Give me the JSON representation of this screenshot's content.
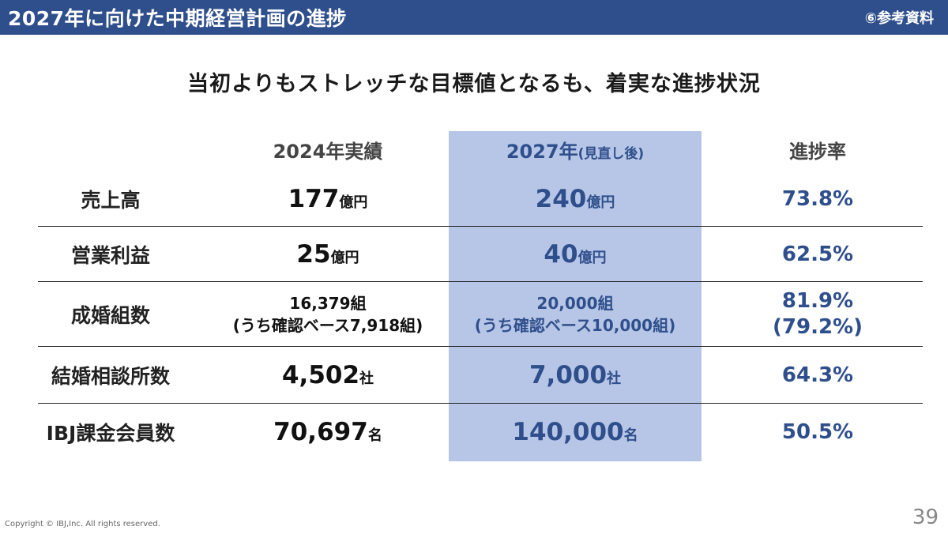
{
  "header": {
    "title": "2027年に向けた中期経営計画の進捗",
    "tag": "⑥参考資料"
  },
  "subtitle": "当初よりもストレッチな目標値となるも、着実な進捗状況",
  "columns": {
    "col_2024": "2024年実績",
    "col_2027": "2027年",
    "col_2027_note": "(見直し後)",
    "col_rate": "進捗率"
  },
  "rows": [
    {
      "label": "売上高",
      "v2024": "177",
      "u2024": "億円",
      "v2027": "240",
      "u2027": "億円",
      "rate": "73.8%"
    },
    {
      "label": "営業利益",
      "v2024": "25",
      "u2024": "億円",
      "v2027": "40",
      "u2027": "億円",
      "rate": "62.5%"
    },
    {
      "label": "成婚組数",
      "v2024_line1": "16,379組",
      "v2024_line2": "(うち確認ベース7,918組)",
      "v2027_line1": "20,000組",
      "v2027_line2": "(うち確認ベース10,000組)",
      "rate": "81.9%",
      "rate_sub": "(79.2%)"
    },
    {
      "label": "結婚相談所数",
      "v2024": "4,502",
      "u2024": "社",
      "v2027": "7,000",
      "u2027": "社",
      "rate": "64.3%"
    },
    {
      "label": "IBJ課金会員数",
      "v2024": "70,697",
      "u2024": "名",
      "v2027": "140,000",
      "u2027": "名",
      "rate": "50.5%"
    }
  ],
  "footer": {
    "copyright": "Copyright © IBJ,Inc. All rights reserved.",
    "page": "39"
  },
  "colors": {
    "header_bg": "#2f4f8c",
    "highlight_column": "#b7c6e6",
    "accent_text": "#2f4f8c"
  }
}
